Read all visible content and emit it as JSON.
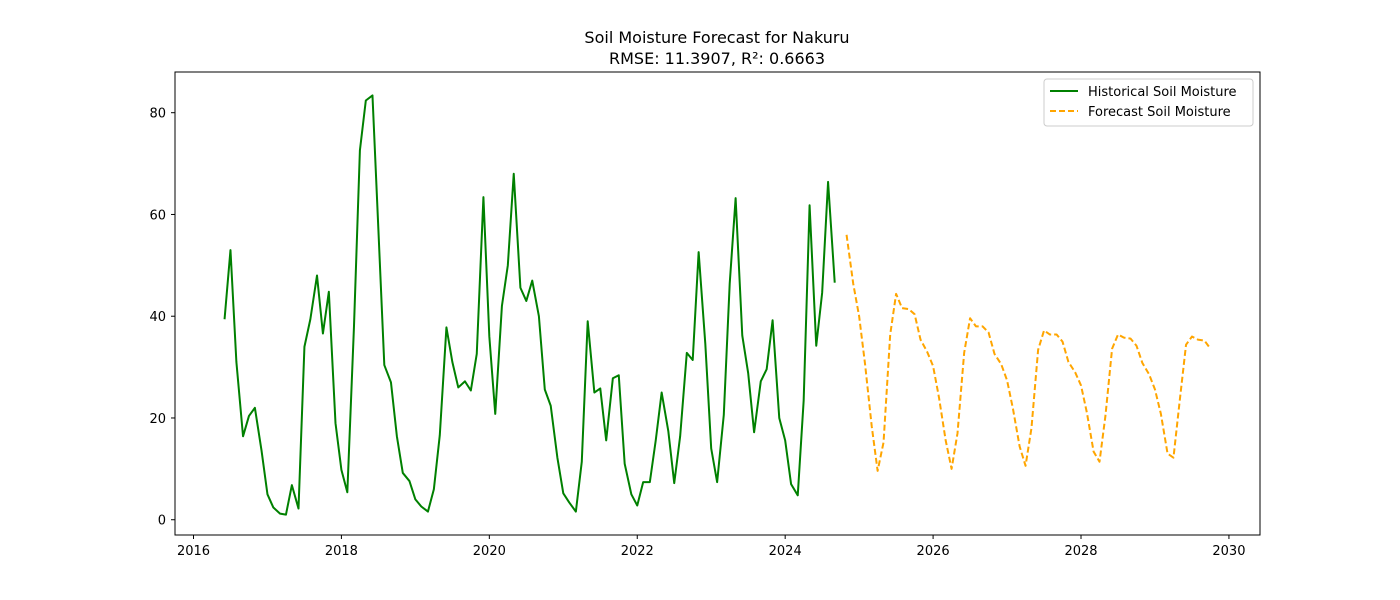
{
  "chart_data": {
    "type": "line",
    "title": "Soil Moisture Forecast for Nakuru",
    "subtitle": "RMSE: 11.3907, R²: 0.6663",
    "xlabel": "",
    "ylabel": "",
    "xlim": [
      2015.75,
      2030.42
    ],
    "ylim": [
      -3,
      88
    ],
    "x_ticks": [
      2016,
      2018,
      2020,
      2022,
      2024,
      2026,
      2028,
      2030
    ],
    "y_ticks": [
      0,
      20,
      40,
      60,
      80
    ],
    "grid": false,
    "legend_position": "top-right",
    "series": [
      {
        "name": "Historical Soil Moisture",
        "color": "#008000",
        "style": "solid",
        "points": [
          [
            2016.42,
            39.4
          ],
          [
            2016.5,
            53.0
          ],
          [
            2016.58,
            31.0
          ],
          [
            2016.67,
            16.4
          ],
          [
            2016.75,
            20.4
          ],
          [
            2016.83,
            22.0
          ],
          [
            2016.92,
            13.6
          ],
          [
            2017.0,
            5.0
          ],
          [
            2017.08,
            2.4
          ],
          [
            2017.17,
            1.2
          ],
          [
            2017.25,
            1.0
          ],
          [
            2017.33,
            6.8
          ],
          [
            2017.42,
            2.2
          ],
          [
            2017.5,
            34.0
          ],
          [
            2017.58,
            39.4
          ],
          [
            2017.67,
            48.0
          ],
          [
            2017.75,
            36.6
          ],
          [
            2017.83,
            44.8
          ],
          [
            2017.92,
            19.0
          ],
          [
            2018.0,
            9.8
          ],
          [
            2018.08,
            5.4
          ],
          [
            2018.17,
            38.0
          ],
          [
            2018.25,
            72.6
          ],
          [
            2018.33,
            82.4
          ],
          [
            2018.42,
            83.4
          ],
          [
            2018.5,
            57.0
          ],
          [
            2018.58,
            30.4
          ],
          [
            2018.67,
            27.0
          ],
          [
            2018.75,
            16.4
          ],
          [
            2018.83,
            9.2
          ],
          [
            2018.92,
            7.6
          ],
          [
            2019.0,
            4.0
          ],
          [
            2019.08,
            2.6
          ],
          [
            2019.17,
            1.6
          ],
          [
            2019.25,
            6.0
          ],
          [
            2019.33,
            16.6
          ],
          [
            2019.42,
            37.8
          ],
          [
            2019.5,
            31.0
          ],
          [
            2019.58,
            26.0
          ],
          [
            2019.67,
            27.2
          ],
          [
            2019.75,
            25.4
          ],
          [
            2019.83,
            32.6
          ],
          [
            2019.92,
            63.4
          ],
          [
            2020.0,
            36.0
          ],
          [
            2020.08,
            20.8
          ],
          [
            2020.17,
            42.0
          ],
          [
            2020.25,
            50.0
          ],
          [
            2020.33,
            68.0
          ],
          [
            2020.42,
            45.6
          ],
          [
            2020.5,
            43.0
          ],
          [
            2020.58,
            47.0
          ],
          [
            2020.67,
            40.0
          ],
          [
            2020.75,
            25.6
          ],
          [
            2020.83,
            22.4
          ],
          [
            2020.92,
            12.2
          ],
          [
            2021.0,
            5.2
          ],
          [
            2021.08,
            3.4
          ],
          [
            2021.17,
            1.6
          ],
          [
            2021.25,
            11.4
          ],
          [
            2021.33,
            39.0
          ],
          [
            2021.42,
            25.0
          ],
          [
            2021.5,
            25.8
          ],
          [
            2021.58,
            15.6
          ],
          [
            2021.67,
            27.8
          ],
          [
            2021.75,
            28.4
          ],
          [
            2021.83,
            11.0
          ],
          [
            2021.92,
            5.0
          ],
          [
            2022.0,
            2.8
          ],
          [
            2022.08,
            7.4
          ],
          [
            2022.17,
            7.4
          ],
          [
            2022.25,
            15.6
          ],
          [
            2022.33,
            25.0
          ],
          [
            2022.42,
            17.4
          ],
          [
            2022.5,
            7.2
          ],
          [
            2022.58,
            16.4
          ],
          [
            2022.67,
            32.8
          ],
          [
            2022.75,
            31.4
          ],
          [
            2022.83,
            52.6
          ],
          [
            2022.92,
            34.6
          ],
          [
            2023.0,
            14.0
          ],
          [
            2023.08,
            7.4
          ],
          [
            2023.17,
            20.6
          ],
          [
            2023.25,
            46.4
          ],
          [
            2023.33,
            63.2
          ],
          [
            2023.42,
            36.2
          ],
          [
            2023.5,
            28.8
          ],
          [
            2023.58,
            17.2
          ],
          [
            2023.67,
            27.2
          ],
          [
            2023.75,
            29.6
          ],
          [
            2023.83,
            39.2
          ],
          [
            2023.92,
            20.0
          ],
          [
            2024.0,
            15.6
          ],
          [
            2024.08,
            7.0
          ],
          [
            2024.17,
            4.8
          ],
          [
            2024.25,
            23.4
          ],
          [
            2024.33,
            61.8
          ],
          [
            2024.42,
            34.2
          ],
          [
            2024.5,
            44.6
          ],
          [
            2024.58,
            66.4
          ],
          [
            2024.67,
            46.6
          ]
        ]
      },
      {
        "name": "Forecast Soil Moisture",
        "color": "#ffa500",
        "style": "dashed",
        "points": [
          [
            2024.83,
            56.0
          ],
          [
            2024.92,
            46.4
          ],
          [
            2025.0,
            40.0
          ],
          [
            2025.08,
            30.6
          ],
          [
            2025.17,
            18.4
          ],
          [
            2025.25,
            9.6
          ],
          [
            2025.33,
            15.2
          ],
          [
            2025.42,
            36.4
          ],
          [
            2025.5,
            44.4
          ],
          [
            2025.58,
            41.6
          ],
          [
            2025.67,
            41.4
          ],
          [
            2025.75,
            40.4
          ],
          [
            2025.83,
            35.4
          ],
          [
            2025.92,
            33.0
          ],
          [
            2026.0,
            30.2
          ],
          [
            2026.08,
            24.0
          ],
          [
            2026.17,
            15.6
          ],
          [
            2026.25,
            10.0
          ],
          [
            2026.33,
            17.0
          ],
          [
            2026.42,
            32.8
          ],
          [
            2026.5,
            39.6
          ],
          [
            2026.58,
            38.0
          ],
          [
            2026.67,
            38.0
          ],
          [
            2026.75,
            36.8
          ],
          [
            2026.83,
            32.6
          ],
          [
            2026.92,
            30.6
          ],
          [
            2027.0,
            27.4
          ],
          [
            2027.08,
            21.8
          ],
          [
            2027.17,
            14.4
          ],
          [
            2027.25,
            10.6
          ],
          [
            2027.33,
            18.0
          ],
          [
            2027.42,
            33.4
          ],
          [
            2027.5,
            37.2
          ],
          [
            2027.58,
            36.4
          ],
          [
            2027.67,
            36.4
          ],
          [
            2027.75,
            35.0
          ],
          [
            2027.83,
            31.0
          ],
          [
            2027.92,
            29.0
          ],
          [
            2028.0,
            26.4
          ],
          [
            2028.08,
            21.0
          ],
          [
            2028.17,
            13.4
          ],
          [
            2028.25,
            11.4
          ],
          [
            2028.33,
            20.4
          ],
          [
            2028.42,
            33.6
          ],
          [
            2028.5,
            36.4
          ],
          [
            2028.58,
            35.8
          ],
          [
            2028.67,
            35.6
          ],
          [
            2028.75,
            34.2
          ],
          [
            2028.83,
            30.8
          ],
          [
            2028.92,
            28.6
          ],
          [
            2029.0,
            25.6
          ],
          [
            2029.08,
            20.8
          ],
          [
            2029.17,
            13.0
          ],
          [
            2029.25,
            12.2
          ],
          [
            2029.33,
            22.8
          ],
          [
            2029.42,
            34.4
          ],
          [
            2029.5,
            36.0
          ],
          [
            2029.58,
            35.4
          ],
          [
            2029.67,
            35.2
          ],
          [
            2029.75,
            33.6
          ]
        ]
      }
    ]
  }
}
